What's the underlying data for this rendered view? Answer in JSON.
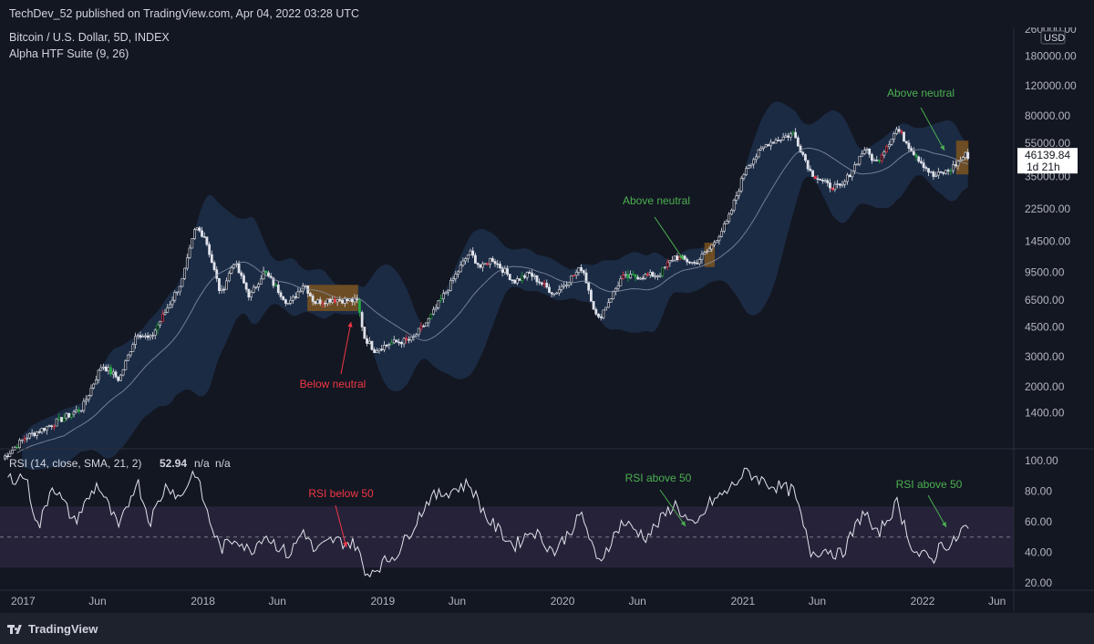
{
  "header": {
    "published": "TechDev_52 published on TradingView.com, Apr 04, 2022 03:28 UTC"
  },
  "legend": {
    "symbol": "Bitcoin / U.S. Dollar, 5D, INDEX",
    "indicator": "Alpha HTF Suite (9, 26)"
  },
  "price_axis": {
    "currency": "USD",
    "labels": [
      "260000.00",
      "180000.00",
      "120000.00",
      "80000.00",
      "55000.00",
      "35000.00",
      "22500.00",
      "14500.00",
      "9500.00",
      "6500.00",
      "4500.00",
      "3000.00",
      "2000.00",
      "1400.00"
    ],
    "last_price": "46139.84",
    "countdown": "1d 21h"
  },
  "rsi_panel": {
    "label": "RSI (14, close, SMA, 21, 2)",
    "value": "52.94",
    "na1": "n/a",
    "na2": "n/a",
    "axis_labels": [
      "100.00",
      "80.00",
      "60.00",
      "40.00",
      "20.00"
    ]
  },
  "time_axis": [
    "2017",
    "Jun",
    "2018",
    "Jun",
    "2019",
    "Jun",
    "2020",
    "Jun",
    "2021",
    "Jun",
    "2022",
    "Jun"
  ],
  "annotations": {
    "below_neutral": "Below neutral",
    "above_neutral_1": "Above neutral",
    "above_neutral_2": "Above neutral",
    "rsi_below": "RSI below 50",
    "rsi_above_1": "RSI above 50",
    "rsi_above_2": "RSI above 50"
  },
  "footer": {
    "brand": "TradingView"
  },
  "colors": {
    "background": "#131722",
    "band": "#1f3350",
    "neutral_zone": "#8a5a1a",
    "candle": "#e0e3eb",
    "bull": "#26a641",
    "bear": "#f23645",
    "red_label": "#f23645",
    "green_label": "#4caf50",
    "rsi_band": "#2a2640"
  },
  "chart_data": [
    {
      "type": "candlestick",
      "title": "Bitcoin / U.S. Dollar, 5D, INDEX",
      "y_scale": "log",
      "ylim": [
        1100,
        260000
      ],
      "x_range": [
        "2016-11-15",
        "2022-07-05"
      ],
      "close_path": [
        [
          "2016-11-20",
          750
        ],
        [
          "2017-01-05",
          1000
        ],
        [
          "2017-03-01",
          1200
        ],
        [
          "2017-05-01",
          1500
        ],
        [
          "2017-06-10",
          2700
        ],
        [
          "2017-07-15",
          2200
        ],
        [
          "2017-08-20",
          4200
        ],
        [
          "2017-09-15",
          3800
        ],
        [
          "2017-10-20",
          5800
        ],
        [
          "2017-11-20",
          8500
        ],
        [
          "2017-12-17",
          17500
        ],
        [
          "2018-01-05",
          15500
        ],
        [
          "2018-02-06",
          7000
        ],
        [
          "2018-03-05",
          11000
        ],
        [
          "2018-04-06",
          6800
        ],
        [
          "2018-05-05",
          9600
        ],
        [
          "2018-06-25",
          6100
        ],
        [
          "2018-07-25",
          8200
        ],
        [
          "2018-08-15",
          6300
        ],
        [
          "2018-09-20",
          6600
        ],
        [
          "2018-11-10",
          6400
        ],
        [
          "2018-11-25",
          3900
        ],
        [
          "2018-12-15",
          3300
        ],
        [
          "2019-01-15",
          3600
        ],
        [
          "2019-03-01",
          3800
        ],
        [
          "2019-04-05",
          5000
        ],
        [
          "2019-05-15",
          7800
        ],
        [
          "2019-06-26",
          12500
        ],
        [
          "2019-07-20",
          10000
        ],
        [
          "2019-08-10",
          11500
        ],
        [
          "2019-09-25",
          8400
        ],
        [
          "2019-10-26",
          9300
        ],
        [
          "2019-12-15",
          7100
        ],
        [
          "2020-02-10",
          10200
        ],
        [
          "2020-03-12",
          4900
        ],
        [
          "2020-04-30",
          8800
        ],
        [
          "2020-07-15",
          9200
        ],
        [
          "2020-08-15",
          11800
        ],
        [
          "2020-09-25",
          10700
        ],
        [
          "2020-10-25",
          13000
        ],
        [
          "2020-12-01",
          19000
        ],
        [
          "2021-01-08",
          40000
        ],
        [
          "2021-02-20",
          55000
        ],
        [
          "2021-04-14",
          63000
        ],
        [
          "2021-05-19",
          37000
        ],
        [
          "2021-06-22",
          31000
        ],
        [
          "2021-07-20",
          30000
        ],
        [
          "2021-09-05",
          51000
        ],
        [
          "2021-09-28",
          42000
        ],
        [
          "2021-11-10",
          67000
        ],
        [
          "2021-12-15",
          48000
        ],
        [
          "2022-01-22",
          35000
        ],
        [
          "2022-02-24",
          38000
        ],
        [
          "2022-03-29",
          47000
        ],
        [
          "2022-04-04",
          46139.84
        ]
      ]
    },
    {
      "type": "line",
      "title": "RSI (14, close, SMA, 21, 2)",
      "ylim": [
        20,
        100
      ],
      "band": [
        30,
        70
      ],
      "midline": 50,
      "last_value": 52.94,
      "series": [
        [
          "2016-12-01",
          88
        ],
        [
          "2017-01-05",
          90
        ],
        [
          "2017-02-01",
          55
        ],
        [
          "2017-03-01",
          85
        ],
        [
          "2017-04-15",
          60
        ],
        [
          "2017-06-01",
          85
        ],
        [
          "2017-07-15",
          55
        ],
        [
          "2017-08-20",
          88
        ],
        [
          "2017-09-15",
          60
        ],
        [
          "2017-10-20",
          85
        ],
        [
          "2017-11-15",
          75
        ],
        [
          "2017-12-15",
          94
        ],
        [
          "2018-01-15",
          60
        ],
        [
          "2018-02-06",
          42
        ],
        [
          "2018-03-10",
          50
        ],
        [
          "2018-04-06",
          40
        ],
        [
          "2018-05-05",
          52
        ],
        [
          "2018-06-25",
          38
        ],
        [
          "2018-07-25",
          55
        ],
        [
          "2018-08-15",
          40
        ],
        [
          "2018-09-20",
          48
        ],
        [
          "2018-11-10",
          45
        ],
        [
          "2018-11-25",
          25
        ],
        [
          "2018-12-20",
          30
        ],
        [
          "2019-02-01",
          40
        ],
        [
          "2019-04-05",
          75
        ],
        [
          "2019-05-15",
          80
        ],
        [
          "2019-06-26",
          85
        ],
        [
          "2019-08-01",
          62
        ],
        [
          "2019-09-25",
          44
        ],
        [
          "2019-11-01",
          55
        ],
        [
          "2019-12-15",
          40
        ],
        [
          "2020-02-10",
          65
        ],
        [
          "2020-03-12",
          32
        ],
        [
          "2020-05-01",
          60
        ],
        [
          "2020-06-20",
          50
        ],
        [
          "2020-08-15",
          72
        ],
        [
          "2020-09-25",
          55
        ],
        [
          "2020-10-25",
          72
        ],
        [
          "2020-12-01",
          80
        ],
        [
          "2021-01-08",
          93
        ],
        [
          "2021-02-20",
          85
        ],
        [
          "2021-04-14",
          80
        ],
        [
          "2021-05-19",
          40
        ],
        [
          "2021-06-22",
          42
        ],
        [
          "2021-07-20",
          38
        ],
        [
          "2021-09-05",
          68
        ],
        [
          "2021-09-28",
          50
        ],
        [
          "2021-11-10",
          72
        ],
        [
          "2021-12-15",
          40
        ],
        [
          "2022-01-22",
          35
        ],
        [
          "2022-02-10",
          48
        ],
        [
          "2022-02-24",
          42
        ],
        [
          "2022-03-29",
          58
        ],
        [
          "2022-04-04",
          52.94
        ]
      ]
    }
  ]
}
